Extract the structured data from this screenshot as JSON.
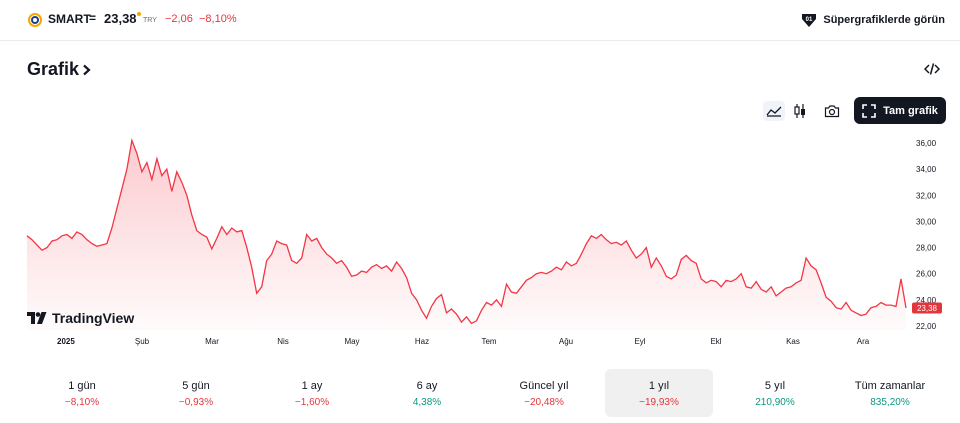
{
  "header": {
    "symbol": "SMART",
    "dash": "=",
    "price": "23,38",
    "currency": "TRY",
    "change": "−2,06",
    "change_percent": "−8,10%",
    "supercharts_label": "Süpergrafiklerde görün",
    "icons": [
      "smart-logo-icon",
      "supercharts-icon"
    ]
  },
  "section": {
    "title": "Grafik",
    "embed_icon": "code-embed-icon"
  },
  "toolbar": {
    "icons": [
      "area-chart-icon",
      "candles-icon",
      "camera-icon",
      "fullscreen-icon"
    ],
    "full_chart_label": "Tam grafik"
  },
  "chart_data": {
    "type": "area",
    "x_labels": [
      "2025",
      "Şub",
      "Mar",
      "Nis",
      "May",
      "Haz",
      "Tem",
      "Ağu",
      "Eyl",
      "Ekl",
      "Kas",
      "Ara"
    ],
    "y_ticks": [
      "36,00",
      "34,00",
      "32,00",
      "30,00",
      "28,00",
      "26,00",
      "24,00",
      "22,00"
    ],
    "ylim": [
      22,
      36
    ],
    "last_price_label": "23,38",
    "series": [
      {
        "values": [
          28.9,
          28.6,
          28.2,
          27.8,
          28.0,
          28.5,
          28.6,
          28.9,
          29.0,
          28.7,
          29.2,
          29.0,
          28.6,
          28.3,
          28.1,
          28.2,
          28.3,
          29.5,
          31.0,
          32.5,
          34.0,
          36.2,
          35.2,
          33.8,
          34.5,
          33.2,
          34.8,
          33.5,
          34.0,
          32.3,
          33.8,
          33.0,
          32.0,
          30.5,
          29.3,
          29.0,
          28.8,
          27.9,
          28.7,
          29.6,
          29.0,
          29.5,
          29.2,
          29.3,
          28.0,
          26.5,
          24.5,
          25.0,
          27.0,
          27.5,
          28.5,
          28.3,
          28.2,
          27.0,
          26.8,
          27.2,
          29.0,
          28.5,
          28.7,
          28.0,
          27.5,
          27.2,
          26.8,
          27.0,
          26.5,
          25.8,
          25.9,
          26.2,
          26.1,
          26.5,
          26.7,
          26.4,
          26.6,
          26.2,
          26.9,
          26.4,
          25.7,
          24.5,
          24.0,
          23.2,
          22.6,
          23.5,
          24.1,
          24.4,
          23.0,
          23.3,
          22.9,
          22.3,
          22.7,
          22.2,
          22.4,
          23.2,
          23.8,
          23.6,
          24.0,
          23.5,
          25.2,
          24.6,
          24.5,
          25.0,
          25.5,
          25.7,
          26.0,
          26.1,
          26.0,
          26.2,
          26.5,
          26.3,
          26.9,
          26.6,
          26.8,
          27.5,
          28.3,
          28.9,
          28.7,
          29.0,
          28.6,
          28.3,
          28.4,
          28.2,
          28.5,
          27.8,
          27.2,
          27.5,
          28.0,
          26.5,
          27.2,
          26.6,
          25.8,
          25.6,
          25.9,
          27.1,
          27.4,
          27.0,
          26.8,
          25.6,
          25.3,
          25.5,
          25.4,
          25.0,
          25.5,
          25.4,
          25.6,
          26.0,
          25.0,
          24.9,
          25.4,
          24.8,
          24.6,
          25.0,
          24.3,
          24.6,
          24.9,
          25.0,
          25.3,
          25.5,
          27.2,
          26.6,
          26.3,
          25.3,
          24.2,
          23.9,
          23.4,
          23.3,
          23.8,
          23.2,
          23.0,
          22.8,
          22.9,
          23.4,
          23.5,
          23.8,
          23.6,
          23.6,
          23.5,
          25.6,
          23.38
        ]
      }
    ]
  },
  "watermark": {
    "brand": "TradingView",
    "icon": "tradingview-logo-icon"
  },
  "periods": [
    {
      "label": "1 gün",
      "value": "−8,10%",
      "sign": "neg"
    },
    {
      "label": "5 gün",
      "value": "−0,93%",
      "sign": "neg"
    },
    {
      "label": "1 ay",
      "value": "−1,60%",
      "sign": "neg"
    },
    {
      "label": "6 ay",
      "value": "4,38%",
      "sign": "pos"
    },
    {
      "label": "Güncel yıl",
      "value": "−20,48%",
      "sign": "neg"
    },
    {
      "label": "1 yıl",
      "value": "−19,93%",
      "sign": "neg",
      "selected": true
    },
    {
      "label": "5 yıl",
      "value": "210,90%",
      "sign": "pos"
    },
    {
      "label": "Tüm zamanlar",
      "value": "835,20%",
      "sign": "pos"
    }
  ],
  "colors": {
    "line": "#f23645",
    "down": "#e2363c",
    "up": "#089981",
    "badge": "#e2363c"
  }
}
